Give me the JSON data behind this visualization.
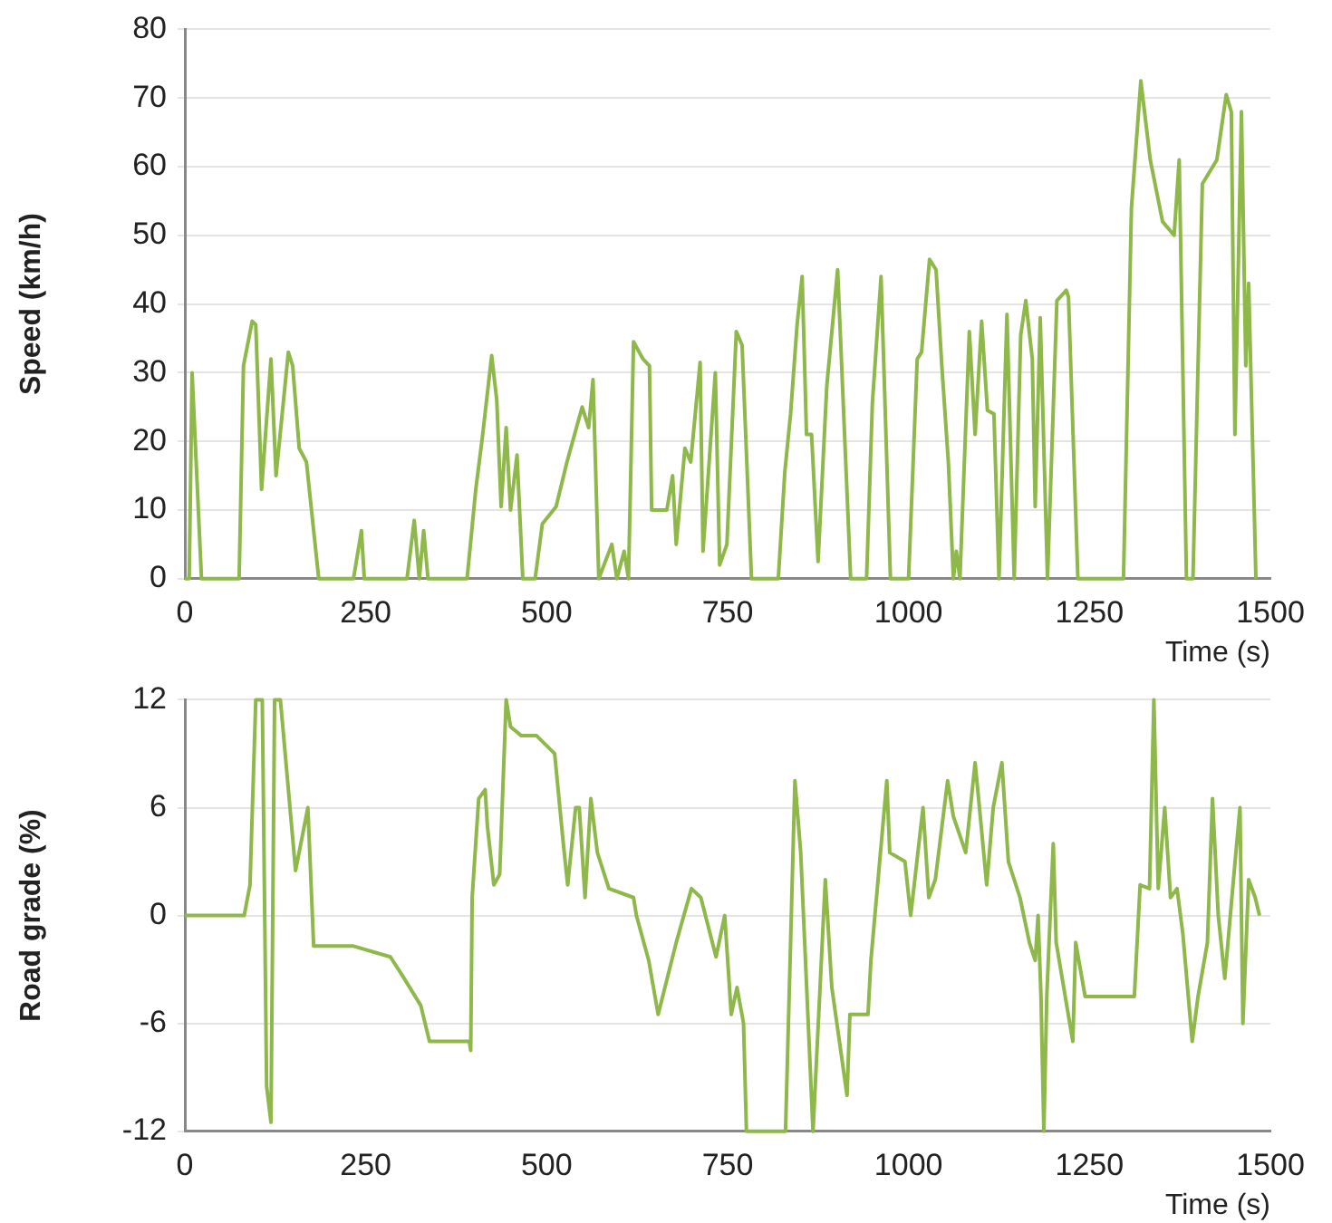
{
  "chart_data": [
    {
      "type": "line",
      "xlabel": "Time (s)",
      "ylabel": "Speed (km/h)",
      "color": "#8fb84a",
      "marker": "none",
      "line_style": "solid",
      "grid": "y",
      "xlim": [
        0,
        1500
      ],
      "xticks": [
        0,
        250,
        500,
        750,
        1000,
        1250,
        1500
      ],
      "ylim": [
        0,
        80
      ],
      "yticks": [
        0,
        10,
        20,
        30,
        40,
        50,
        60,
        70,
        80
      ],
      "x": [
        0,
        6,
        10,
        23,
        75,
        81,
        93,
        98,
        106,
        119,
        126,
        143,
        149,
        158,
        168,
        185,
        233,
        244,
        248,
        307,
        317,
        324,
        330,
        336,
        390,
        402,
        411,
        424,
        431,
        437,
        444,
        450,
        459,
        467,
        484,
        494,
        513,
        528,
        549,
        558,
        564,
        572,
        590,
        597,
        607,
        613,
        620,
        633,
        642,
        645,
        653,
        666,
        674,
        679,
        691,
        699,
        712,
        716,
        733,
        739,
        749,
        762,
        770,
        783,
        820,
        829,
        837,
        846,
        853,
        859,
        866,
        875,
        887,
        902,
        920,
        942,
        950,
        962,
        975,
        1000,
        1012,
        1018,
        1029,
        1038,
        1046,
        1055,
        1062,
        1066,
        1071,
        1084,
        1092,
        1101,
        1109,
        1118,
        1125,
        1136,
        1146,
        1155,
        1162,
        1171,
        1175,
        1182,
        1192,
        1205,
        1218,
        1221,
        1234,
        1297,
        1308,
        1321,
        1334,
        1351,
        1367,
        1374,
        1384,
        1393,
        1406,
        1426,
        1439,
        1446,
        1451,
        1460,
        1466,
        1470,
        1480
      ],
      "values": [
        0,
        0,
        30,
        0,
        0,
        31,
        37.5,
        37,
        13,
        32,
        15,
        33,
        31,
        19,
        17,
        0,
        0,
        7,
        0,
        0,
        8.5,
        0,
        7,
        0,
        0,
        13,
        20.5,
        32.5,
        26,
        10.5,
        22,
        10,
        18,
        0,
        0,
        8,
        10.5,
        17,
        25,
        22,
        29,
        0,
        5,
        0,
        4,
        0,
        34.5,
        32,
        31,
        10,
        10,
        10,
        15,
        5,
        19,
        17,
        31.5,
        4,
        30,
        2,
        5,
        36,
        34,
        0,
        0,
        15.5,
        24,
        37,
        44,
        21,
        21,
        2.5,
        28,
        45,
        0,
        0,
        25.5,
        44,
        0,
        0,
        32,
        33,
        46.5,
        45,
        31,
        17,
        0,
        4,
        0,
        36,
        21,
        37.5,
        24.5,
        24,
        0,
        38.5,
        0,
        35.5,
        40.5,
        32,
        10.5,
        38,
        0,
        40.5,
        42,
        41,
        0,
        0,
        54,
        72.5,
        61,
        52,
        50,
        61,
        0,
        0,
        57.5,
        61,
        70.5,
        68,
        21,
        68,
        31,
        43,
        0
      ]
    },
    {
      "type": "line",
      "xlabel": "Time (s)",
      "ylabel": "Road grade (%)",
      "color": "#8fb84a",
      "marker": "none",
      "line_style": "solid",
      "grid": "y",
      "xlim": [
        0,
        1500
      ],
      "xticks": [
        0,
        250,
        500,
        750,
        1000,
        1250,
        1500
      ],
      "ylim": [
        -12,
        12
      ],
      "yticks": [
        -12,
        -6,
        0,
        6,
        12
      ],
      "x": [
        0,
        82,
        90,
        98,
        107,
        113,
        119,
        124,
        132,
        153,
        170,
        178,
        233,
        284,
        300,
        326,
        338,
        393,
        395,
        397,
        406,
        415,
        418,
        427,
        435,
        444,
        450,
        465,
        486,
        511,
        523,
        529,
        540,
        545,
        553,
        561,
        570,
        586,
        620,
        624,
        641,
        654,
        679,
        700,
        713,
        734,
        746,
        755,
        763,
        772,
        776,
        830,
        843,
        851,
        868,
        885,
        894,
        915,
        919,
        944,
        948,
        970,
        974,
        995,
        1003,
        1020,
        1028,
        1037,
        1054,
        1062,
        1079,
        1092,
        1098,
        1108,
        1117,
        1129,
        1138,
        1154,
        1167,
        1175,
        1179,
        1183,
        1187,
        1191,
        1200,
        1204,
        1227,
        1231,
        1244,
        1312,
        1320,
        1333,
        1339,
        1345,
        1354,
        1362,
        1371,
        1379,
        1392,
        1400,
        1413,
        1420,
        1428,
        1437,
        1449,
        1458,
        1462,
        1470,
        1479,
        1485
      ],
      "values": [
        0,
        0,
        1.7,
        12,
        12,
        -9.5,
        -11.5,
        12,
        12,
        2.5,
        6,
        -1.7,
        -1.7,
        -2.3,
        -3.3,
        -5,
        -7,
        -7,
        -7.5,
        1,
        6.5,
        7,
        5,
        1.7,
        2.3,
        12,
        10.5,
        10,
        10,
        9,
        4,
        1.7,
        6,
        6,
        1,
        6.5,
        3.5,
        1.5,
        1,
        0,
        -2.5,
        -5.5,
        -1.5,
        1.5,
        1,
        -2.3,
        0,
        -5.5,
        -4,
        -6,
        -12,
        -12,
        7.5,
        3.5,
        -12,
        2,
        -4,
        -10,
        -5.5,
        -5.5,
        -2.5,
        7.5,
        3.5,
        3,
        0,
        6,
        1,
        2,
        7.5,
        5.5,
        3.5,
        8.5,
        6,
        1.7,
        6,
        8.5,
        3,
        1,
        -1.5,
        -2.5,
        0,
        -4.5,
        -12,
        -4.5,
        4,
        -1.5,
        -7,
        -1.5,
        -4.5,
        -4.5,
        1.7,
        1.5,
        12,
        1.5,
        6,
        1,
        1.5,
        -1,
        -7,
        -4.5,
        -1.5,
        6.5,
        0,
        -3.5,
        2,
        6,
        -6,
        2,
        1,
        0
      ]
    }
  ]
}
